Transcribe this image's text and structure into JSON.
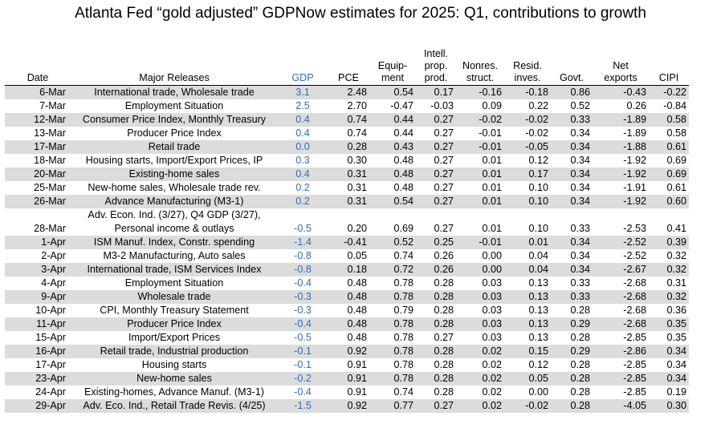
{
  "title": "Atlanta Fed “gold adjusted” GDPNow estimates for 2025: Q1, contributions to growth",
  "colors": {
    "gdp": "#2b6fbd",
    "shade": "#dcdcdc"
  },
  "headers": [
    [
      "Date"
    ],
    [
      "Major Releases"
    ],
    [
      "GDP"
    ],
    [
      "PCE"
    ],
    [
      "Equip-",
      "ment"
    ],
    [
      "Intell.",
      "prop.",
      "prod."
    ],
    [
      "Nonres.",
      "struct."
    ],
    [
      "Resid.",
      "inves."
    ],
    [
      "Govt."
    ],
    [
      "Net",
      "exports"
    ],
    [
      "CIPI"
    ]
  ],
  "rows": [
    {
      "date": "6-Mar",
      "release": [
        "International trade, Wholesale trade"
      ],
      "gdp": "3.1",
      "pce": "2.48",
      "equip": "0.54",
      "ipp": "0.17",
      "nonres": "-0.16",
      "resid": "-0.18",
      "govt": "0.86",
      "netexp": "-0.43",
      "cipi": "-0.22"
    },
    {
      "date": "7-Mar",
      "release": [
        "Employment Situation"
      ],
      "gdp": "2.5",
      "pce": "2.70",
      "equip": "-0.47",
      "ipp": "-0.03",
      "nonres": "0.09",
      "resid": "0.22",
      "govt": "0.52",
      "netexp": "0.26",
      "cipi": "-0.84"
    },
    {
      "date": "12-Mar",
      "release": [
        "Consumer Price Index, Monthly Treasury"
      ],
      "gdp": "0.4",
      "pce": "0.74",
      "equip": "0.44",
      "ipp": "0.27",
      "nonres": "-0.02",
      "resid": "-0.02",
      "govt": "0.33",
      "netexp": "-1.89",
      "cipi": "0.58"
    },
    {
      "date": "13-Mar",
      "release": [
        "Producer Price Index"
      ],
      "gdp": "0.4",
      "pce": "0.74",
      "equip": "0.44",
      "ipp": "0.27",
      "nonres": "-0.01",
      "resid": "-0.02",
      "govt": "0.34",
      "netexp": "-1.89",
      "cipi": "0.58"
    },
    {
      "date": "17-Mar",
      "release": [
        "Retail trade"
      ],
      "gdp": "0.0",
      "pce": "0.28",
      "equip": "0.43",
      "ipp": "0.27",
      "nonres": "-0.01",
      "resid": "-0.05",
      "govt": "0.34",
      "netexp": "-1.88",
      "cipi": "0.61"
    },
    {
      "date": "18-Mar",
      "release": [
        "Housing starts, Import/Export Prices, IP"
      ],
      "gdp": "0.3",
      "pce": "0.30",
      "equip": "0.48",
      "ipp": "0.27",
      "nonres": "0.01",
      "resid": "0.12",
      "govt": "0.34",
      "netexp": "-1.92",
      "cipi": "0.69"
    },
    {
      "date": "20-Mar",
      "release": [
        "Existing-home sales"
      ],
      "gdp": "0.4",
      "pce": "0.31",
      "equip": "0.48",
      "ipp": "0.27",
      "nonres": "0.01",
      "resid": "0.17",
      "govt": "0.34",
      "netexp": "-1.92",
      "cipi": "0.69"
    },
    {
      "date": "25-Mar",
      "release": [
        "New-home sales, Wholesale trade rev."
      ],
      "gdp": "0.2",
      "pce": "0.31",
      "equip": "0.48",
      "ipp": "0.27",
      "nonres": "0.01",
      "resid": "0.10",
      "govt": "0.34",
      "netexp": "-1.91",
      "cipi": "0.61"
    },
    {
      "date": "26-Mar",
      "release": [
        "Advance Manufacturing (M3-1)"
      ],
      "gdp": "0.2",
      "pce": "0.31",
      "equip": "0.54",
      "ipp": "0.27",
      "nonres": "0.01",
      "resid": "0.10",
      "govt": "0.34",
      "netexp": "-1.92",
      "cipi": "0.60"
    },
    {
      "date": "28-Mar",
      "release": [
        "Adv. Econ. Ind. (3/27), Q4 GDP (3/27),",
        "Personal income & outlays"
      ],
      "gdp": "-0.5",
      "pce": "0.20",
      "equip": "0.69",
      "ipp": "0.27",
      "nonres": "0.01",
      "resid": "0.10",
      "govt": "0.33",
      "netexp": "-2.53",
      "cipi": "0.41"
    },
    {
      "date": "1-Apr",
      "release": [
        "ISM Manuf. Index, Constr. spending"
      ],
      "gdp": "-1.4",
      "pce": "-0.41",
      "equip": "0.52",
      "ipp": "0.25",
      "nonres": "-0.01",
      "resid": "0.01",
      "govt": "0.34",
      "netexp": "-2.52",
      "cipi": "0.39"
    },
    {
      "date": "2-Apr",
      "release": [
        "M3-2 Manufacturing, Auto sales"
      ],
      "gdp": "-0.8",
      "pce": "0.05",
      "equip": "0.74",
      "ipp": "0.26",
      "nonres": "0.00",
      "resid": "0.04",
      "govt": "0.34",
      "netexp": "-2.52",
      "cipi": "0.32"
    },
    {
      "date": "3-Apr",
      "release": [
        "International trade, ISM Services Index"
      ],
      "gdp": "-0.8",
      "pce": "0.18",
      "equip": "0.72",
      "ipp": "0.26",
      "nonres": "0.00",
      "resid": "0.04",
      "govt": "0.34",
      "netexp": "-2.67",
      "cipi": "0.32"
    },
    {
      "date": "4-Apr",
      "release": [
        "Employment Situation"
      ],
      "gdp": "-0.4",
      "pce": "0.48",
      "equip": "0.78",
      "ipp": "0.28",
      "nonres": "0.03",
      "resid": "0.13",
      "govt": "0.33",
      "netexp": "-2.68",
      "cipi": "0.31"
    },
    {
      "date": "9-Apr",
      "release": [
        "Wholesale trade"
      ],
      "gdp": "-0.3",
      "pce": "0.48",
      "equip": "0.78",
      "ipp": "0.28",
      "nonres": "0.03",
      "resid": "0.13",
      "govt": "0.33",
      "netexp": "-2.68",
      "cipi": "0.32"
    },
    {
      "date": "10-Apr",
      "release": [
        "CPI, Monthly Treasury Statement"
      ],
      "gdp": "-0.3",
      "pce": "0.48",
      "equip": "0.79",
      "ipp": "0.28",
      "nonres": "0.03",
      "resid": "0.13",
      "govt": "0.28",
      "netexp": "-2.68",
      "cipi": "0.36"
    },
    {
      "date": "11-Apr",
      "release": [
        "Producer Price Index"
      ],
      "gdp": "-0.4",
      "pce": "0.48",
      "equip": "0.78",
      "ipp": "0.28",
      "nonres": "0.03",
      "resid": "0.13",
      "govt": "0.29",
      "netexp": "-2.68",
      "cipi": "0.35"
    },
    {
      "date": "15-Apr",
      "release": [
        "Import/Export Prices"
      ],
      "gdp": "-0.5",
      "pce": "0.48",
      "equip": "0.78",
      "ipp": "0.27",
      "nonres": "0.03",
      "resid": "0.13",
      "govt": "0.28",
      "netexp": "-2.85",
      "cipi": "0.35"
    },
    {
      "date": "16-Apr",
      "release": [
        "Retail trade, Industrial production"
      ],
      "gdp": "-0.1",
      "pce": "0.92",
      "equip": "0.78",
      "ipp": "0.28",
      "nonres": "0.02",
      "resid": "0.15",
      "govt": "0.29",
      "netexp": "-2.86",
      "cipi": "0.34"
    },
    {
      "date": "17-Apr",
      "release": [
        "Housing starts"
      ],
      "gdp": "-0.1",
      "pce": "0.91",
      "equip": "0.78",
      "ipp": "0.28",
      "nonres": "0.02",
      "resid": "0.12",
      "govt": "0.28",
      "netexp": "-2.85",
      "cipi": "0.34"
    },
    {
      "date": "23-Apr",
      "release": [
        "New-home sales"
      ],
      "gdp": "-0.2",
      "pce": "0.91",
      "equip": "0.78",
      "ipp": "0.28",
      "nonres": "0.02",
      "resid": "0.05",
      "govt": "0.28",
      "netexp": "-2.85",
      "cipi": "0.34"
    },
    {
      "date": "24-Apr",
      "release": [
        "Existing-homes, Advance Manuf. (M3-1)"
      ],
      "gdp": "-0.4",
      "pce": "0.91",
      "equip": "0.74",
      "ipp": "0.28",
      "nonres": "0.02",
      "resid": "0.00",
      "govt": "0.28",
      "netexp": "-2.85",
      "cipi": "0.19"
    },
    {
      "date": "29-Apr",
      "release": [
        "Adv. Eco. Ind., Retail Trade Revis. (4/25)"
      ],
      "gdp": "-1.5",
      "pce": "0.92",
      "equip": "0.77",
      "ipp": "0.27",
      "nonres": "0.02",
      "resid": "-0.02",
      "govt": "0.28",
      "netexp": "-4.05",
      "cipi": "0.30"
    }
  ]
}
